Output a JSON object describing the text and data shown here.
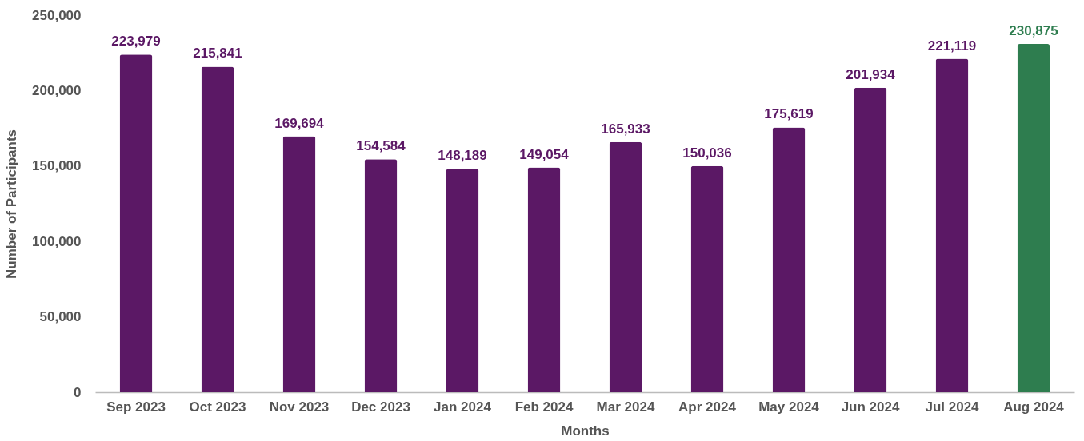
{
  "chart_data": {
    "type": "bar",
    "xlabel": "Months",
    "ylabel": "Number of Participants",
    "categories": [
      "Sep 2023",
      "Oct 2023",
      "Nov 2023",
      "Dec 2023",
      "Jan 2024",
      "Feb 2024",
      "Mar 2024",
      "Apr 2024",
      "May 2024",
      "Jun 2024",
      "Jul 2024",
      "Aug 2024"
    ],
    "values": [
      223979,
      215841,
      169694,
      154584,
      148189,
      149054,
      165933,
      150036,
      175619,
      201934,
      221119,
      230875
    ],
    "value_labels": [
      "223,979",
      "215,841",
      "169,694",
      "154,584",
      "148,189",
      "149,054",
      "165,933",
      "150,036",
      "175,619",
      "201,934",
      "221,119",
      "230,875"
    ],
    "colors": [
      "#5b1865",
      "#5b1865",
      "#5b1865",
      "#5b1865",
      "#5b1865",
      "#5b1865",
      "#5b1865",
      "#5b1865",
      "#5b1865",
      "#5b1865",
      "#5b1865",
      "#2e7d4f"
    ],
    "ylim": [
      0,
      250000
    ],
    "yticks": [
      0,
      {
        "value": 50000,
        "label": "50,000"
      },
      {
        "value": 100000,
        "label": "100,000"
      },
      {
        "value": 150000,
        "label": "150,000"
      },
      {
        "value": 200000,
        "label": "200,000"
      },
      {
        "value": 250000,
        "label": "250,000"
      }
    ],
    "grid": false
  }
}
